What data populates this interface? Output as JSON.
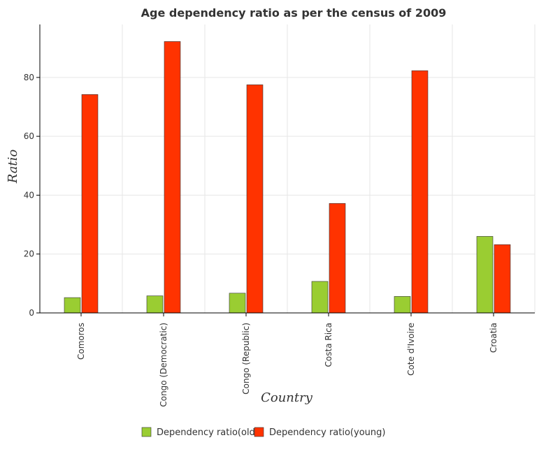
{
  "chart_data": {
    "type": "bar",
    "title": "Age dependency ratio as per the census of 2009",
    "xlabel": "Country",
    "ylabel": "Ratio",
    "categories": [
      "Comoros",
      "Congo (Democratic)",
      "Congo (Republic)",
      "Costa Rica",
      "Cote d'Ivoire",
      "Croatia"
    ],
    "series": [
      {
        "name": "Dependency ratio(old)",
        "color": "#9acd32",
        "values": [
          5.2,
          5.8,
          6.7,
          10.7,
          5.6,
          26.0
        ]
      },
      {
        "name": "Dependency ratio(young)",
        "color": "#ff3300",
        "values": [
          74.2,
          92.2,
          77.5,
          37.2,
          82.3,
          23.2
        ]
      }
    ],
    "ylim": [
      0,
      98
    ],
    "yticks": [
      0,
      20,
      40,
      60,
      80
    ],
    "grid": true,
    "legend_position": "bottom-center"
  }
}
